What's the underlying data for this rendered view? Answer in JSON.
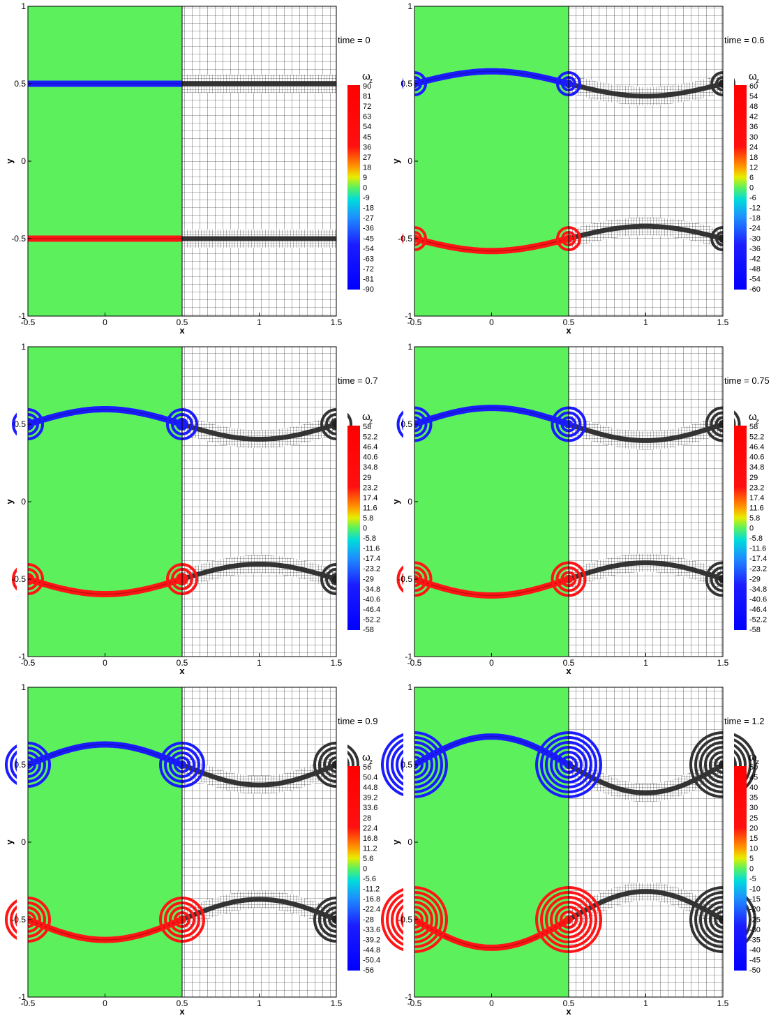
{
  "colorbar_title": "ω",
  "colorbar_subscript": "z",
  "x_axis_label": "x",
  "y_axis_label": "y",
  "x_ticks": [
    "-0.5",
    "0",
    "0.5",
    "1",
    "1.5"
  ],
  "y_ticks": [
    "1",
    "0.5",
    "0",
    "-0.5",
    "-1"
  ],
  "colors": {
    "background_field": "#5cf15c",
    "positive_vorticity": "#ff1515",
    "negative_vorticity": "#1b1bff",
    "mesh_line": "#000000",
    "axis": "#000000"
  },
  "chart_data": [
    {
      "type": "heatmap",
      "time_label": "time = 0",
      "time": 0,
      "xlim": [
        -0.5,
        1.5
      ],
      "ylim": [
        -1,
        1
      ],
      "colorbar_levels": [
        "90",
        "81",
        "72",
        "63",
        "54",
        "45",
        "36",
        "27",
        "18",
        "9",
        "0",
        "-9",
        "-18",
        "-27",
        "-36",
        "-45",
        "-54",
        "-63",
        "-72",
        "-81",
        "-90"
      ],
      "shear_layers": [
        {
          "y": 0.5,
          "sign": "negative"
        },
        {
          "y": -0.5,
          "sign": "positive"
        }
      ],
      "left_half": "vorticity contour",
      "right_half": "adaptive mesh"
    },
    {
      "type": "heatmap",
      "time_label": "time = 0.6",
      "time": 0.6,
      "xlim": [
        -0.5,
        1.5
      ],
      "ylim": [
        -1,
        1
      ],
      "colorbar_levels": [
        "60",
        "54",
        "48",
        "42",
        "36",
        "30",
        "24",
        "18",
        "12",
        "6",
        "0",
        "-6",
        "-12",
        "-18",
        "-24",
        "-30",
        "-36",
        "-42",
        "-48",
        "-54",
        "-60"
      ],
      "shear_layers": [
        {
          "y": 0.5,
          "sign": "negative"
        },
        {
          "y": -0.5,
          "sign": "positive"
        }
      ],
      "left_half": "vorticity contour",
      "right_half": "adaptive mesh"
    },
    {
      "type": "heatmap",
      "time_label": "time = 0.7",
      "time": 0.7,
      "xlim": [
        -0.5,
        1.5
      ],
      "ylim": [
        -1,
        1
      ],
      "colorbar_levels": [
        "58",
        "52.2",
        "46.4",
        "40.6",
        "34.8",
        "29",
        "23.2",
        "17.4",
        "11.6",
        "5.8",
        "0",
        "-5.8",
        "-11.6",
        "-17.4",
        "-23.2",
        "-29",
        "-34.8",
        "-40.6",
        "-46.4",
        "-52.2",
        "-58"
      ],
      "shear_layers": [
        {
          "y": 0.5,
          "sign": "negative"
        },
        {
          "y": -0.5,
          "sign": "positive"
        }
      ],
      "left_half": "vorticity contour",
      "right_half": "adaptive mesh"
    },
    {
      "type": "heatmap",
      "time_label": "time = 0.75",
      "time": 0.75,
      "xlim": [
        -0.5,
        1.5
      ],
      "ylim": [
        -1,
        1
      ],
      "colorbar_levels": [
        "58",
        "52.2",
        "46.4",
        "40.6",
        "34.8",
        "29",
        "23.2",
        "17.4",
        "11.6",
        "5.8",
        "0",
        "-5.8",
        "-11.6",
        "-17.4",
        "-23.2",
        "-29",
        "-34.8",
        "-40.6",
        "-46.4",
        "-52.2",
        "-58"
      ],
      "shear_layers": [
        {
          "y": 0.5,
          "sign": "negative"
        },
        {
          "y": -0.5,
          "sign": "positive"
        }
      ],
      "left_half": "vorticity contour",
      "right_half": "adaptive mesh"
    },
    {
      "type": "heatmap",
      "time_label": "time = 0.9",
      "time": 0.9,
      "xlim": [
        -0.5,
        1.5
      ],
      "ylim": [
        -1,
        1
      ],
      "colorbar_levels": [
        "56",
        "50.4",
        "44.8",
        "39.2",
        "33.6",
        "28",
        "22.4",
        "16.8",
        "11.2",
        "5.6",
        "0",
        "-5.6",
        "-11.2",
        "-16.8",
        "-22.4",
        "-28",
        "-33.6",
        "-39.2",
        "-44.8",
        "-50.4",
        "-56"
      ],
      "shear_layers": [
        {
          "y": 0.5,
          "sign": "negative"
        },
        {
          "y": -0.5,
          "sign": "positive"
        }
      ],
      "left_half": "vorticity contour",
      "right_half": "adaptive mesh"
    },
    {
      "type": "heatmap",
      "time_label": "time = 1.2",
      "time": 1.2,
      "xlim": [
        -0.5,
        1.5
      ],
      "ylim": [
        -1,
        1
      ],
      "colorbar_levels": [
        "50",
        "45",
        "40",
        "35",
        "30",
        "25",
        "20",
        "15",
        "10",
        "5",
        "0",
        "-5",
        "-10",
        "-15",
        "-20",
        "-25",
        "-30",
        "-35",
        "-40",
        "-45",
        "-50"
      ],
      "shear_layers": [
        {
          "y": 0.5,
          "sign": "negative"
        },
        {
          "y": -0.5,
          "sign": "positive"
        }
      ],
      "left_half": "vorticity contour",
      "right_half": "adaptive mesh"
    }
  ]
}
